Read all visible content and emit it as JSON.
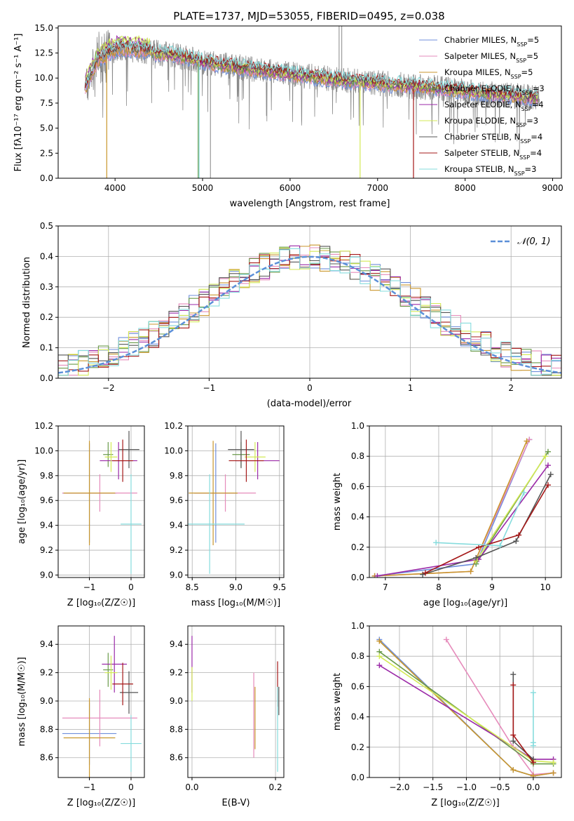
{
  "colors": {
    "Chabrier MILES": "#6f8fdb",
    "Salpeter MILES": "#e68bbb",
    "Kroupa MILES": "#c9962c",
    "Chabrier ELODIE": "#6a9a4a",
    "Salpeter ELODIE": "#9b2aa8",
    "Kroupa ELODIE": "#d3ea55",
    "Chabrier STELIB": "#555555",
    "Salpeter STELIB": "#a51818",
    "Kroupa STELIB": "#86dcdd",
    "orange": "#e07b39",
    "normal": "#5b8fd8"
  },
  "spectrum": {
    "title": "PLATE=1737, MJD=53055, FIBERID=0495, z=0.038",
    "xlabel": "wavelength [Angstrom, rest frame]",
    "ylabel": "Flux [fλ10⁻¹⁷ erg cm⁻² s⁻¹ A⁻¹]",
    "xlim": [
      3350,
      9100
    ],
    "ylim": [
      0,
      15.2
    ],
    "xticks": [
      "4000",
      "5000",
      "6000",
      "7000",
      "8000",
      "9000"
    ],
    "yticks": [
      "0.0",
      "2.5",
      "5.0",
      "7.5",
      "10.0",
      "12.5",
      "15.0"
    ],
    "data_range": [
      3650,
      8850
    ],
    "legend": [
      {
        "label": "Chabrier MILES, N",
        "sub": "SSP",
        "suffix": "=5"
      },
      {
        "label": "Salpeter MILES, N",
        "sub": "SSP",
        "suffix": "=5"
      },
      {
        "label": "Kroupa MILES, N",
        "sub": "SSP",
        "suffix": "=5"
      },
      {
        "label": "Chabrier ELODIE, N",
        "sub": "SSP",
        "suffix": "=3"
      },
      {
        "label": "Salpeter ELODIE, N",
        "sub": "SSP",
        "suffix": "=4"
      },
      {
        "label": "Kroupa ELODIE, N",
        "sub": "SSP",
        "suffix": "=3"
      },
      {
        "label": "Chabrier STELIB, N",
        "sub": "SSP",
        "suffix": "=4"
      },
      {
        "label": "Salpeter STELIB, N",
        "sub": "SSP",
        "suffix": "=4"
      },
      {
        "label": "Kroupa STELIB, N",
        "sub": "SSP",
        "suffix": "=3"
      }
    ]
  },
  "chart_data": [
    {
      "type": "line",
      "title": "PLATE=1737, MJD=53055, FIBERID=0495, z=0.038",
      "xlabel": "wavelength [Angstrom, rest frame]",
      "ylabel": "Flux [fλ10⁻¹⁷ erg cm⁻² s⁻¹ A⁻¹]",
      "xlim": [
        3350,
        9100
      ],
      "ylim": [
        0,
        15.2
      ],
      "continuum": {
        "x": [
          3650,
          3800,
          3950,
          4050,
          4200,
          4400,
          4600,
          4800,
          5000,
          5400,
          5800,
          6200,
          6600,
          7000,
          7400,
          7800,
          8200,
          8600,
          8850
        ],
        "y": [
          8.8,
          11.8,
          12.6,
          13.0,
          12.8,
          12.6,
          12.4,
          12.1,
          11.6,
          11.1,
          10.6,
          10.2,
          9.8,
          9.5,
          9.2,
          8.9,
          8.5,
          8.2,
          8.0
        ]
      }
    },
    {
      "type": "bar",
      "title": "",
      "xlabel": "(data-model)/error",
      "ylabel": "Normed distribution",
      "xlim": [
        -2.5,
        2.5
      ],
      "ylim": [
        0,
        0.5
      ],
      "normal_label": "𝒩(0, 1)",
      "bin_width": 0.1
    },
    {
      "type": "scatter",
      "xlabel": "Z [log₁₀(Z/Z☉)]",
      "ylabel": "age  [log₁₀(age/yr)]",
      "xlim": [
        -1.75,
        0.32
      ],
      "ylim": [
        8.98,
        10.2
      ],
      "points": [
        {
          "series": "Chabrier MILES",
          "x": -1.0,
          "xerr": 0.65,
          "y": 9.66,
          "yerr": 0.4
        },
        {
          "series": "Salpeter MILES",
          "x": -0.75,
          "xerr": 0.9,
          "y": 9.66,
          "yerr": 0.15
        },
        {
          "series": "Kroupa MILES",
          "x": -1.0,
          "xerr": 0.62,
          "y": 9.66,
          "yerr": 0.42
        },
        {
          "series": "Chabrier ELODIE",
          "x": -0.55,
          "xerr": 0.12,
          "y": 9.97,
          "yerr": 0.1
        },
        {
          "series": "Salpeter ELODIE",
          "x": -0.3,
          "xerr": 0.45,
          "y": 9.92,
          "yerr": 0.15
        },
        {
          "series": "Kroupa ELODIE",
          "x": -0.48,
          "xerr": 0.15,
          "y": 9.95,
          "yerr": 0.12
        },
        {
          "series": "Chabrier STELIB",
          "x": -0.05,
          "xerr": 0.25,
          "y": 10.01,
          "yerr": 0.15
        },
        {
          "series": "Salpeter STELIB",
          "x": -0.2,
          "xerr": 0.25,
          "y": 9.92,
          "yerr": 0.17
        },
        {
          "series": "Kroupa STELIB",
          "x": 0.0,
          "xerr": 0.25,
          "y": 9.41,
          "yerr": 0.4
        }
      ]
    },
    {
      "type": "scatter",
      "xlabel": "mass [log₁₀(M/M☉)]",
      "ylabel": "",
      "xlim": [
        8.45,
        9.55
      ],
      "ylim": [
        8.98,
        10.2
      ],
      "points": [
        {
          "series": "Chabrier MILES",
          "x": 8.77,
          "xerr": 0.25,
          "y": 9.66,
          "yerr": 0.4
        },
        {
          "series": "Salpeter MILES",
          "x": 8.88,
          "xerr": 0.35,
          "y": 9.66,
          "yerr": 0.15
        },
        {
          "series": "Kroupa MILES",
          "x": 8.74,
          "xerr": 0.28,
          "y": 9.66,
          "yerr": 0.42
        },
        {
          "series": "Chabrier ELODIE",
          "x": 9.06,
          "xerr": 0.1,
          "y": 9.97,
          "yerr": 0.1
        },
        {
          "series": "Salpeter ELODIE",
          "x": 9.25,
          "xerr": 0.25,
          "y": 9.92,
          "yerr": 0.15
        },
        {
          "series": "Kroupa ELODIE",
          "x": 9.22,
          "xerr": 0.12,
          "y": 9.95,
          "yerr": 0.12
        },
        {
          "series": "Chabrier STELIB",
          "x": 9.06,
          "xerr": 0.15,
          "y": 10.01,
          "yerr": 0.15
        },
        {
          "series": "Salpeter STELIB",
          "x": 9.12,
          "xerr": 0.2,
          "y": 9.92,
          "yerr": 0.17
        },
        {
          "series": "Kroupa STELIB",
          "x": 8.7,
          "xerr": 0.4,
          "y": 9.41,
          "yerr": 0.4
        }
      ]
    },
    {
      "type": "line",
      "xlabel": "age  [log₁₀(age/yr)]",
      "ylabel": "mass weight",
      "xlim": [
        6.7,
        10.3
      ],
      "ylim": [
        0,
        1.0
      ],
      "series": [
        {
          "name": "Chabrier MILES",
          "x": [
            6.8,
            8.7,
            9.7
          ],
          "y": [
            0.01,
            0.09,
            0.91
          ]
        },
        {
          "name": "Salpeter MILES",
          "x": [
            6.8,
            8.6,
            9.7
          ],
          "y": [
            0.01,
            0.04,
            0.91
          ]
        },
        {
          "name": "Kroupa MILES",
          "x": [
            6.8,
            8.6,
            9.65
          ],
          "y": [
            0.01,
            0.04,
            0.9
          ]
        },
        {
          "name": "Chabrier ELODIE",
          "x": [
            8.7,
            10.05
          ],
          "y": [
            0.09,
            0.83
          ]
        },
        {
          "name": "Salpeter ELODIE",
          "x": [
            6.85,
            8.75,
            10.05
          ],
          "y": [
            0.01,
            0.12,
            0.74
          ]
        },
        {
          "name": "Kroupa ELODIE",
          "x": [
            8.7,
            10.0
          ],
          "y": [
            0.11,
            0.8
          ]
        },
        {
          "name": "Chabrier STELIB",
          "x": [
            7.7,
            8.7,
            9.45,
            10.1
          ],
          "y": [
            0.02,
            0.13,
            0.24,
            0.68
          ]
        },
        {
          "name": "Salpeter STELIB",
          "x": [
            7.75,
            8.75,
            9.5,
            10.05
          ],
          "y": [
            0.03,
            0.2,
            0.28,
            0.61
          ]
        },
        {
          "name": "Kroupa STELIB",
          "x": [
            7.95,
            9.15,
            9.6
          ],
          "y": [
            0.23,
            0.21,
            0.56
          ]
        }
      ]
    },
    {
      "type": "scatter",
      "xlabel": "Z [log₁₀(Z/Z☉)]",
      "ylabel": "mass [log₁₀(M/M☉)]",
      "xlim": [
        -1.75,
        0.32
      ],
      "ylim": [
        8.46,
        9.53
      ],
      "points": [
        {
          "series": "Chabrier MILES",
          "x": -1.0,
          "xerr": 0.65,
          "y": 8.77,
          "yerr": 0.22
        },
        {
          "series": "Salpeter MILES",
          "x": -0.75,
          "xerr": 0.9,
          "y": 8.88,
          "yerr": 0.2
        },
        {
          "series": "Kroupa MILES",
          "x": -1.0,
          "xerr": 0.62,
          "y": 8.74,
          "yerr": 0.28
        },
        {
          "series": "Chabrier ELODIE",
          "x": -0.55,
          "xerr": 0.12,
          "y": 9.22,
          "yerr": 0.12
        },
        {
          "series": "Salpeter ELODIE",
          "x": -0.4,
          "xerr": 0.3,
          "y": 9.26,
          "yerr": 0.2
        },
        {
          "series": "Kroupa ELODIE",
          "x": -0.48,
          "xerr": 0.15,
          "y": 9.2,
          "yerr": 0.12
        },
        {
          "series": "Chabrier STELIB",
          "x": -0.05,
          "xerr": 0.22,
          "y": 9.06,
          "yerr": 0.15
        },
        {
          "series": "Salpeter STELIB",
          "x": -0.2,
          "xerr": 0.25,
          "y": 9.12,
          "yerr": 0.15
        },
        {
          "series": "Kroupa STELIB",
          "x": 0.0,
          "xerr": 0.25,
          "y": 8.7,
          "yerr": 0.2
        }
      ]
    },
    {
      "type": "scatter",
      "xlabel": "E(B-V)",
      "ylabel": "",
      "xlim": [
        -0.01,
        0.22
      ],
      "ylim": [
        8.46,
        9.53
      ],
      "points": [
        {
          "series": "Salpeter ELODIE",
          "x": 0.0,
          "y": 9.26,
          "yerr": 0.2
        },
        {
          "series": "Kroupa ELODIE",
          "x": 0.0,
          "y": 9.12,
          "yerr": 0.12
        },
        {
          "series": "Salpeter MILES",
          "x": 0.148,
          "y": 8.9,
          "yerr": 0.3
        },
        {
          "series": "Kroupa MILES",
          "x": 0.151,
          "y": 8.88,
          "yerr": 0.22
        },
        {
          "series": "Salpeter STELIB",
          "x": 0.205,
          "y": 9.12,
          "yerr": 0.16
        },
        {
          "series": "Chabrier STELIB",
          "x": 0.208,
          "y": 9.0,
          "yerr": 0.1
        },
        {
          "series": "Kroupa STELIB",
          "x": 0.205,
          "y": 8.8,
          "yerr": 0.3
        }
      ]
    },
    {
      "type": "line",
      "xlabel": "Z [log₁₀(Z/Z☉)]",
      "ylabel": "mass weight",
      "xlim": [
        -2.45,
        0.42
      ],
      "ylim": [
        0,
        1.0
      ],
      "series": [
        {
          "name": "Chabrier MILES",
          "x": [
            -2.3,
            -0.3,
            0.0,
            0.3
          ],
          "y": [
            0.91,
            0.05,
            0.01,
            0.03
          ]
        },
        {
          "name": "Salpeter MILES",
          "x": [
            -1.3,
            -0.3,
            0.0,
            0.3
          ],
          "y": [
            0.91,
            0.2,
            0.02,
            0.03
          ]
        },
        {
          "name": "Kroupa MILES",
          "x": [
            -2.3,
            -0.3,
            0.0,
            0.3
          ],
          "y": [
            0.9,
            0.05,
            0.01,
            0.03
          ]
        },
        {
          "name": "Chabrier ELODIE",
          "x": [
            -2.3,
            0.0,
            0.3
          ],
          "y": [
            0.83,
            0.09,
            0.09
          ]
        },
        {
          "name": "Salpeter ELODIE",
          "x": [
            -2.3,
            0.0,
            0.3
          ],
          "y": [
            0.74,
            0.12,
            0.12
          ]
        },
        {
          "name": "Kroupa ELODIE",
          "x": [
            -2.3,
            0.0,
            0.3
          ],
          "y": [
            0.8,
            0.11,
            0.1
          ]
        },
        {
          "name": "Chabrier STELIB",
          "x": [
            -0.3,
            -0.3,
            0.0
          ],
          "y": [
            0.68,
            0.24,
            0.12
          ]
        },
        {
          "name": "Salpeter STELIB",
          "x": [
            -0.3,
            -0.3,
            0.0
          ],
          "y": [
            0.61,
            0.28,
            0.1
          ]
        },
        {
          "name": "Kroupa STELIB",
          "x": [
            0.0,
            0.0,
            0.0
          ],
          "y": [
            0.56,
            0.23,
            0.21
          ]
        }
      ]
    }
  ],
  "panels": {
    "hist_xticks": [
      "−2",
      "−1",
      "0",
      "1",
      "2"
    ],
    "hist_yticks": [
      "0.0",
      "0.1",
      "0.2",
      "0.3",
      "0.4",
      "0.5"
    ],
    "age_yticks": [
      "9.0",
      "9.2",
      "9.4",
      "9.6",
      "9.8",
      "10.0",
      "10.2"
    ],
    "z_xticks": [
      "−1",
      "0"
    ],
    "mass_xticks": [
      "8.5",
      "9.0",
      "9.5"
    ],
    "mw_age_xticks": [
      "7",
      "8",
      "9",
      "10"
    ],
    "mw_yticks": [
      "0.0",
      "0.2",
      "0.4",
      "0.6",
      "0.8",
      "1.0"
    ],
    "mass_yticks": [
      "8.6",
      "8.8",
      "9.0",
      "9.2",
      "9.4"
    ],
    "ebv_xticks": [
      "0.0",
      "0.2"
    ],
    "mw_z_xticks": [
      "−2.0",
      "−1.5",
      "−1.0",
      "−0.5",
      "0.0"
    ]
  }
}
